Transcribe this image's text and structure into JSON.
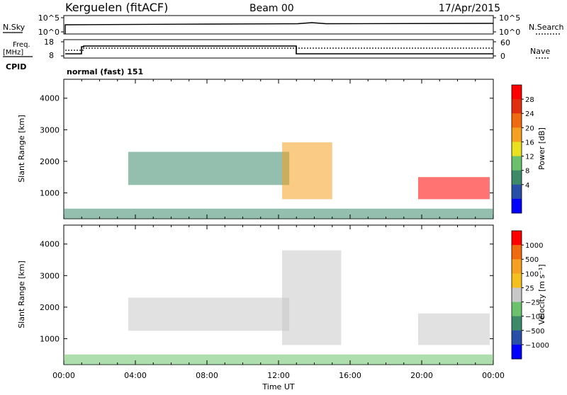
{
  "header": {
    "station": "Kerguelen (fitACF)",
    "beam": "Beam 00",
    "date": "17/Apr/2015"
  },
  "strips": {
    "nsky_label": "N.Sky",
    "nsearch_label": "N.Search",
    "nsky_ticks": [
      "10^5",
      "10^0"
    ],
    "nsky_right_ticks": [
      "10^5",
      "10^0"
    ],
    "freq_label": "Freq.",
    "freq_unit": "[MHz]",
    "freq_ticks": [
      "18",
      "8"
    ],
    "nave_label": "Nave",
    "nave_ticks": [
      "60",
      "0"
    ],
    "cpid_label": "CPID",
    "cpid_text": "normal (fast) 151"
  },
  "chart_data": [
    {
      "type": "heatmap",
      "name": "power",
      "ylabel": "Slant Range [km]",
      "yticks": [
        1000,
        2000,
        3000,
        4000
      ],
      "ylim": [
        180,
        4600
      ],
      "xlim": [
        0,
        24
      ],
      "colorbar": {
        "label": "Power [dB]",
        "ticks": [
          "28",
          "24",
          "20",
          "16",
          "12",
          "8",
          "4"
        ],
        "colors": [
          "#0000ff",
          "#2a4fa8",
          "#3d8a6b",
          "#6cc26c",
          "#e8e020",
          "#f4a020",
          "#f06a10",
          "#e03010",
          "#ff0000"
        ]
      },
      "regions": [
        {
          "t0": 3.6,
          "t1": 12.6,
          "r0": 1250,
          "r1": 2300,
          "level": 2
        },
        {
          "t0": 12.2,
          "t1": 15.0,
          "r0": 800,
          "r1": 2600,
          "level": 5
        },
        {
          "t0": 19.8,
          "t1": 23.8,
          "r0": 800,
          "r1": 1500,
          "level": 8
        },
        {
          "t0": 0.0,
          "t1": 24.0,
          "r0": 180,
          "r1": 500,
          "level": 2
        }
      ]
    },
    {
      "type": "heatmap",
      "name": "velocity",
      "ylabel": "Slant Range [km]",
      "yticks": [
        1000,
        2000,
        3000,
        4000
      ],
      "ylim": [
        180,
        4600
      ],
      "xlim": [
        0,
        24
      ],
      "xlabel": "Time UT",
      "xticks": [
        "00:00",
        "04:00",
        "08:00",
        "12:00",
        "16:00",
        "20:00",
        "00:00"
      ],
      "colorbar": {
        "label": "Velocity [m s⁻¹]",
        "ticks": [
          "1000",
          "500",
          "100",
          "25",
          "−25",
          "−100",
          "−500",
          "−1000"
        ],
        "colors": [
          "#0000ff",
          "#2a4fa8",
          "#3d8a6b",
          "#6cc26c",
          "#c8c8c8",
          "#f4c020",
          "#f4a020",
          "#f06a10",
          "#ff0000"
        ]
      },
      "regions": [
        {
          "t0": 3.6,
          "t1": 12.6,
          "r0": 1250,
          "r1": 2300,
          "level": 4
        },
        {
          "t0": 12.2,
          "t1": 15.5,
          "r0": 800,
          "r1": 3800,
          "level": 4
        },
        {
          "t0": 19.8,
          "t1": 23.8,
          "r0": 800,
          "r1": 1800,
          "level": 4
        },
        {
          "t0": 0.0,
          "t1": 24.0,
          "r0": 180,
          "r1": 500,
          "level": 3
        }
      ]
    }
  ]
}
